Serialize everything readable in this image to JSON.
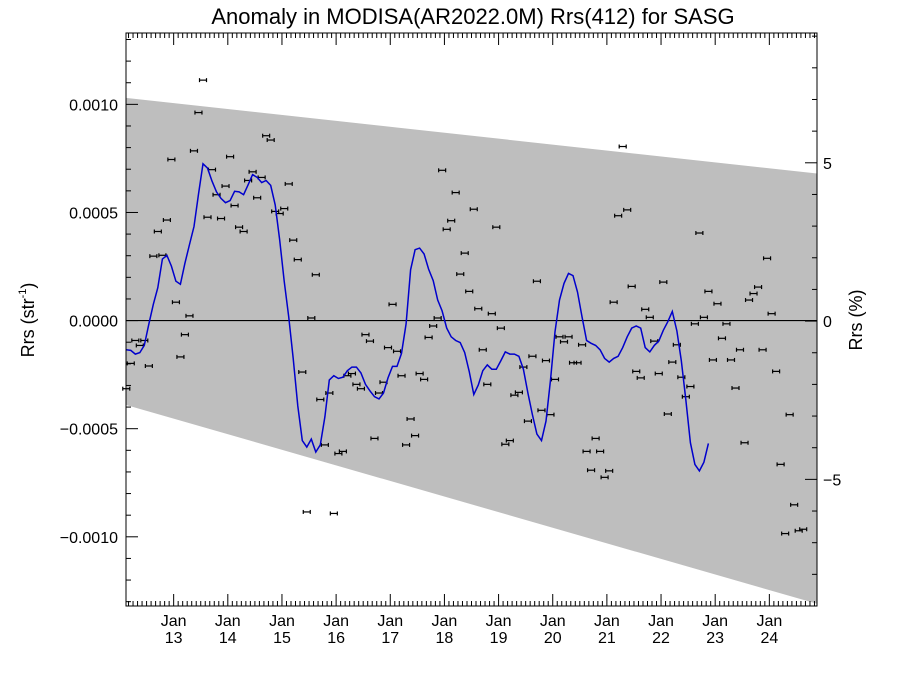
{
  "chart_data": {
    "type": "scatter",
    "title": "Anomaly in MODISA(AR2022.0M) Rrs(412) for SASG",
    "ylabel_left": "Rrs (str",
    "ylabel_left_sup": "-1",
    "ylabel_left_close": ")",
    "ylabel_right": "Rrs (%)",
    "xlim": [
      2012.12,
      2024.88
    ],
    "ylim": [
      -0.00132,
      0.00133
    ],
    "y2lim": [
      -9.0,
      9.1
    ],
    "x_ticks": [
      {
        "month": "Jan",
        "year": "13",
        "x": 2013.0
      },
      {
        "month": "Jan",
        "year": "14",
        "x": 2014.0
      },
      {
        "month": "Jan",
        "year": "15",
        "x": 2015.0
      },
      {
        "month": "Jan",
        "year": "16",
        "x": 2016.0
      },
      {
        "month": "Jan",
        "year": "17",
        "x": 2017.0
      },
      {
        "month": "Jan",
        "year": "18",
        "x": 2018.0
      },
      {
        "month": "Jan",
        "year": "19",
        "x": 2019.0
      },
      {
        "month": "Jan",
        "year": "20",
        "x": 2020.0
      },
      {
        "month": "Jan",
        "year": "21",
        "x": 2021.0
      },
      {
        "month": "Jan",
        "year": "22",
        "x": 2022.0
      },
      {
        "month": "Jan",
        "year": "23",
        "x": 2023.0
      },
      {
        "month": "Jan",
        "year": "24",
        "x": 2024.0
      }
    ],
    "y_ticks": [
      {
        "label": "0.0010",
        "value": 0.001
      },
      {
        "label": "0.0005",
        "value": 0.0005
      },
      {
        "label": "0.0000",
        "value": 0.0
      },
      {
        "label": "−0.0005",
        "value": -0.0005
      },
      {
        "label": "−0.0010",
        "value": -0.001
      }
    ],
    "y2_ticks": [
      {
        "label": "5",
        "value": 5
      },
      {
        "label": "0",
        "value": 0
      },
      {
        "label": "−5",
        "value": -5
      }
    ],
    "band": {
      "upper": [
        [
          2012.12,
          0.00103
        ],
        [
          2024.88,
          0.00068
        ]
      ],
      "lower": [
        [
          2012.12,
          -0.00039
        ],
        [
          2024.88,
          -0.00131
        ]
      ]
    },
    "zero_line": 0.0,
    "colors": {
      "band": "#bebebe",
      "line": "#0000cc",
      "points": "#000000",
      "zero": "#000000"
    },
    "points": [
      [
        2012.125,
        -0.000315
      ],
      [
        2012.208,
        -0.000198
      ],
      [
        2012.292,
        -9.2e-05
      ],
      [
        2012.375,
        -0.000115
      ],
      [
        2012.458,
        -9.2e-05
      ],
      [
        2012.542,
        -0.00021
      ],
      [
        2012.625,
        0.000298
      ],
      [
        2012.708,
        0.000412
      ],
      [
        2012.792,
        0.000302
      ],
      [
        2012.875,
        0.000465
      ],
      [
        2012.958,
        0.000745
      ],
      [
        2013.042,
        8.5e-05
      ],
      [
        2013.125,
        -0.000168
      ],
      [
        2013.208,
        -6.5e-05
      ],
      [
        2013.292,
        2.2e-05
      ],
      [
        2013.375,
        0.000785
      ],
      [
        2013.458,
        0.000962
      ],
      [
        2013.542,
        0.001112
      ],
      [
        2013.625,
        0.000478
      ],
      [
        2013.708,
        0.000698
      ],
      [
        2013.792,
        0.000582
      ],
      [
        2013.875,
        0.000472
      ],
      [
        2013.958,
        0.000622
      ],
      [
        2014.042,
        0.000758
      ],
      [
        2014.125,
        0.000532
      ],
      [
        2014.208,
        0.000432
      ],
      [
        2014.292,
        0.000412
      ],
      [
        2014.375,
        0.000648
      ],
      [
        2014.458,
        0.000688
      ],
      [
        2014.542,
        0.000568
      ],
      [
        2014.625,
        0.000662
      ],
      [
        2014.708,
        0.000855
      ],
      [
        2014.792,
        0.000835
      ],
      [
        2014.875,
        0.000505
      ],
      [
        2014.958,
        0.000495
      ],
      [
        2015.042,
        0.000518
      ],
      [
        2015.125,
        0.000632
      ],
      [
        2015.208,
        0.000372
      ],
      [
        2015.292,
        0.000282
      ],
      [
        2015.375,
        -0.000238
      ],
      [
        2015.458,
        -0.000885
      ],
      [
        2015.542,
        1.2e-05
      ],
      [
        2015.625,
        0.000212
      ],
      [
        2015.708,
        -0.000365
      ],
      [
        2015.792,
        -0.000575
      ],
      [
        2015.875,
        -0.000335
      ],
      [
        2015.958,
        -0.000892
      ],
      [
        2016.042,
        -0.000615
      ],
      [
        2016.125,
        -0.000605
      ],
      [
        2016.208,
        -0.000255
      ],
      [
        2016.292,
        -0.000245
      ],
      [
        2016.375,
        -0.000295
      ],
      [
        2016.458,
        -0.000315
      ],
      [
        2016.542,
        -6.5e-05
      ],
      [
        2016.625,
        -9.5e-05
      ],
      [
        2016.708,
        -0.000545
      ],
      [
        2016.792,
        -0.000335
      ],
      [
        2016.875,
        -0.000285
      ],
      [
        2016.958,
        -0.000125
      ],
      [
        2017.042,
        7.5e-05
      ],
      [
        2017.125,
        -0.000142
      ],
      [
        2017.208,
        -0.000255
      ],
      [
        2017.292,
        -0.000575
      ],
      [
        2017.375,
        -0.000455
      ],
      [
        2017.458,
        -0.000532
      ],
      [
        2017.542,
        -0.000245
      ],
      [
        2017.625,
        -0.000272
      ],
      [
        2017.708,
        -7.8e-05
      ],
      [
        2017.792,
        -2.5e-05
      ],
      [
        2017.875,
        1.2e-05
      ],
      [
        2017.958,
        0.000695
      ],
      [
        2018.042,
        0.000422
      ],
      [
        2018.125,
        0.000462
      ],
      [
        2018.208,
        0.000592
      ],
      [
        2018.292,
        0.000215
      ],
      [
        2018.375,
        0.000312
      ],
      [
        2018.458,
        0.000135
      ],
      [
        2018.542,
        0.000515
      ],
      [
        2018.625,
        5.5e-05
      ],
      [
        2018.708,
        -0.000135
      ],
      [
        2018.792,
        -0.000295
      ],
      [
        2018.875,
        3.2e-05
      ],
      [
        2018.958,
        0.000432
      ],
      [
        2019.042,
        -3.5e-05
      ],
      [
        2019.125,
        -0.000572
      ],
      [
        2019.208,
        -0.000555
      ],
      [
        2019.292,
        -0.000345
      ],
      [
        2019.375,
        -0.000332
      ],
      [
        2019.458,
        -0.000215
      ],
      [
        2019.542,
        -0.000465
      ],
      [
        2019.625,
        -0.000165
      ],
      [
        2019.708,
        0.000182
      ],
      [
        2019.792,
        -0.000415
      ],
      [
        2019.875,
        -0.000185
      ],
      [
        2019.958,
        -0.000435
      ],
      [
        2020.042,
        -0.000272
      ],
      [
        2020.125,
        -7.5e-05
      ],
      [
        2020.208,
        -9.8e-05
      ],
      [
        2020.292,
        -7.5e-05
      ],
      [
        2020.375,
        -0.000195
      ],
      [
        2020.458,
        -0.000195
      ],
      [
        2020.542,
        -0.000112
      ],
      [
        2020.625,
        -0.000605
      ],
      [
        2020.708,
        -0.000692
      ],
      [
        2020.792,
        -0.000545
      ],
      [
        2020.875,
        -0.000605
      ],
      [
        2020.958,
        -0.000725
      ],
      [
        2021.042,
        -0.000695
      ],
      [
        2021.125,
        8.5e-05
      ],
      [
        2021.208,
        0.000485
      ],
      [
        2021.292,
        0.000805
      ],
      [
        2021.375,
        0.000512
      ],
      [
        2021.458,
        0.000158
      ],
      [
        2021.542,
        -0.000235
      ],
      [
        2021.625,
        -0.000265
      ],
      [
        2021.708,
        5.2e-05
      ],
      [
        2021.792,
        1.5e-05
      ],
      [
        2021.875,
        -9.5e-05
      ],
      [
        2021.958,
        -0.000245
      ],
      [
        2022.042,
        0.000178
      ],
      [
        2022.125,
        -0.000432
      ],
      [
        2022.208,
        -0.000192
      ],
      [
        2022.292,
        -0.000112
      ],
      [
        2022.375,
        -0.000262
      ],
      [
        2022.458,
        -0.000352
      ],
      [
        2022.542,
        -0.000305
      ],
      [
        2022.625,
        -1.5e-05
      ],
      [
        2022.708,
        0.000405
      ],
      [
        2022.792,
        1.5e-05
      ],
      [
        2022.875,
        0.000135
      ],
      [
        2022.958,
        -0.000182
      ],
      [
        2023.042,
        7.8e-05
      ],
      [
        2023.125,
        -8.2e-05
      ],
      [
        2023.208,
        -1.5e-05
      ],
      [
        2023.292,
        -0.000182
      ],
      [
        2023.375,
        -0.000312
      ],
      [
        2023.458,
        -0.000135
      ],
      [
        2023.542,
        -0.000565
      ],
      [
        2023.625,
        9.5e-05
      ],
      [
        2023.708,
        0.000125
      ],
      [
        2023.792,
        0.000155
      ],
      [
        2023.875,
        -0.000135
      ],
      [
        2023.958,
        0.000288
      ],
      [
        2024.042,
        3.2e-05
      ],
      [
        2024.125,
        -0.000235
      ],
      [
        2024.208,
        -0.000665
      ],
      [
        2024.292,
        -0.000985
      ],
      [
        2024.375,
        -0.000435
      ],
      [
        2024.458,
        -0.000852
      ],
      [
        2024.542,
        -0.000972
      ],
      [
        2024.625,
        -0.000965
      ]
    ],
    "smooth": [
      [
        2012.125,
        -0.000135
      ],
      [
        2012.208,
        -0.000138
      ],
      [
        2012.292,
        -0.000155
      ],
      [
        2012.375,
        -0.000148
      ],
      [
        2012.458,
        -0.000115
      ],
      [
        2012.542,
        -1.5e-05
      ],
      [
        2012.625,
        7.5e-05
      ],
      [
        2012.708,
        0.000152
      ],
      [
        2012.792,
        0.000285
      ],
      [
        2012.875,
        0.000302
      ],
      [
        2012.958,
        0.000252
      ],
      [
        2013.042,
        0.000182
      ],
      [
        2013.125,
        0.000168
      ],
      [
        2013.208,
        0.000265
      ],
      [
        2013.292,
        0.000352
      ],
      [
        2013.375,
        0.000435
      ],
      [
        2013.458,
        0.000585
      ],
      [
        2013.542,
        0.000725
      ],
      [
        2013.625,
        0.000705
      ],
      [
        2013.708,
        0.000645
      ],
      [
        2013.792,
        0.000595
      ],
      [
        2013.875,
        0.000565
      ],
      [
        2013.958,
        0.000545
      ],
      [
        2014.042,
        0.000555
      ],
      [
        2014.125,
        0.000598
      ],
      [
        2014.208,
        0.000595
      ],
      [
        2014.292,
        0.000582
      ],
      [
        2014.375,
        0.000628
      ],
      [
        2014.458,
        0.000675
      ],
      [
        2014.542,
        0.000662
      ],
      [
        2014.625,
        0.000638
      ],
      [
        2014.708,
        0.000648
      ],
      [
        2014.792,
        0.000625
      ],
      [
        2014.875,
        0.000535
      ],
      [
        2014.958,
        0.000372
      ],
      [
        2015.042,
        0.000182
      ],
      [
        2015.125,
        1.8e-05
      ],
      [
        2015.208,
        -0.000175
      ],
      [
        2015.292,
        -0.000395
      ],
      [
        2015.375,
        -0.000555
      ],
      [
        2015.458,
        -0.000585
      ],
      [
        2015.542,
        -0.000548
      ],
      [
        2015.625,
        -0.000608
      ],
      [
        2015.708,
        -0.000575
      ],
      [
        2015.792,
        -0.000445
      ],
      [
        2015.875,
        -0.000275
      ],
      [
        2015.958,
        -0.000255
      ],
      [
        2016.042,
        -0.000268
      ],
      [
        2016.125,
        -0.000262
      ],
      [
        2016.208,
        -0.000232
      ],
      [
        2016.292,
        -0.000215
      ],
      [
        2016.375,
        -0.000215
      ],
      [
        2016.458,
        -0.000242
      ],
      [
        2016.542,
        -0.000295
      ],
      [
        2016.625,
        -0.000325
      ],
      [
        2016.708,
        -0.000352
      ],
      [
        2016.792,
        -0.000362
      ],
      [
        2016.875,
        -0.000335
      ],
      [
        2016.958,
        -0.000265
      ],
      [
        2017.042,
        -0.000212
      ],
      [
        2017.125,
        -0.000212
      ],
      [
        2017.208,
        -0.000152
      ],
      [
        2017.292,
        -1.5e-05
      ],
      [
        2017.375,
        0.000235
      ],
      [
        2017.458,
        0.000328
      ],
      [
        2017.542,
        0.000335
      ],
      [
        2017.625,
        0.000308
      ],
      [
        2017.708,
        0.000238
      ],
      [
        2017.792,
        0.000185
      ],
      [
        2017.875,
        9.5e-05
      ],
      [
        2017.958,
        4.5e-05
      ],
      [
        2018.042,
        -3.5e-05
      ],
      [
        2018.125,
        -7.5e-05
      ],
      [
        2018.208,
        -9.2e-05
      ],
      [
        2018.292,
        -0.000102
      ],
      [
        2018.375,
        -0.000148
      ],
      [
        2018.458,
        -0.000235
      ],
      [
        2018.542,
        -0.000342
      ],
      [
        2018.625,
        -0.000298
      ],
      [
        2018.708,
        -0.000232
      ],
      [
        2018.792,
        -0.000205
      ],
      [
        2018.875,
        -0.000225
      ],
      [
        2018.958,
        -0.000225
      ],
      [
        2019.042,
        -0.000185
      ],
      [
        2019.125,
        -0.000145
      ],
      [
        2019.208,
        -0.000155
      ],
      [
        2019.292,
        -0.000155
      ],
      [
        2019.375,
        -0.000165
      ],
      [
        2019.458,
        -0.000225
      ],
      [
        2019.542,
        -0.000335
      ],
      [
        2019.625,
        -0.000435
      ],
      [
        2019.708,
        -0.000525
      ],
      [
        2019.792,
        -0.000555
      ],
      [
        2019.875,
        -0.000465
      ],
      [
        2019.958,
        -0.000275
      ],
      [
        2020.042,
        -5.2e-05
      ],
      [
        2020.125,
        9.5e-05
      ],
      [
        2020.208,
        0.000172
      ],
      [
        2020.292,
        0.000218
      ],
      [
        2020.375,
        0.000208
      ],
      [
        2020.458,
        0.000132
      ],
      [
        2020.542,
        1.5e-05
      ],
      [
        2020.625,
        -9.2e-05
      ],
      [
        2020.708,
        -0.000105
      ],
      [
        2020.792,
        -0.000115
      ],
      [
        2020.875,
        -0.000135
      ],
      [
        2020.958,
        -0.000175
      ],
      [
        2021.042,
        -0.000192
      ],
      [
        2021.125,
        -0.000175
      ],
      [
        2021.208,
        -0.000165
      ],
      [
        2021.292,
        -0.000125
      ],
      [
        2021.375,
        -7.5e-05
      ],
      [
        2021.458,
        -3.5e-05
      ],
      [
        2021.542,
        -2.5e-05
      ],
      [
        2021.625,
        -3.5e-05
      ],
      [
        2021.708,
        -0.000125
      ],
      [
        2021.792,
        -0.000145
      ],
      [
        2021.875,
        -0.000115
      ],
      [
        2021.958,
        -9.5e-05
      ],
      [
        2022.042,
        -4.5e-05
      ],
      [
        2022.125,
        -5e-06
      ],
      [
        2022.208,
        4.2e-05
      ],
      [
        2022.292,
        -4.8e-05
      ],
      [
        2022.375,
        -0.000185
      ],
      [
        2022.458,
        -0.000365
      ],
      [
        2022.542,
        -0.000565
      ],
      [
        2022.625,
        -0.000665
      ],
      [
        2022.708,
        -0.000695
      ],
      [
        2022.792,
        -0.000655
      ],
      [
        2022.875,
        -0.000568
      ]
    ]
  }
}
